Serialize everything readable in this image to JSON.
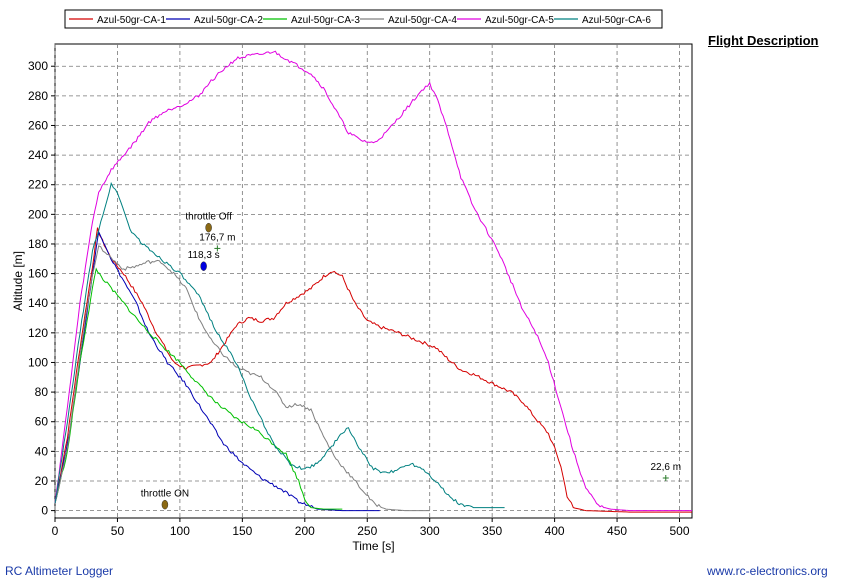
{
  "side_title": "Flight Description",
  "footer": {
    "left": "RC Altimeter Logger",
    "right": "www.rc-electronics.org"
  },
  "chart_data": {
    "type": "line",
    "xlabel": "Time [s]",
    "ylabel": "Altitude [m]",
    "xlim": [
      0,
      510
    ],
    "ylim": [
      -5,
      315
    ],
    "x_ticks": [
      0,
      50,
      100,
      150,
      200,
      250,
      300,
      350,
      400,
      450,
      500
    ],
    "y_ticks": [
      0,
      20,
      40,
      60,
      80,
      100,
      120,
      140,
      160,
      180,
      200,
      220,
      240,
      260,
      280,
      300
    ],
    "grid": true,
    "legend_position": "top",
    "series": [
      {
        "name": "Azul-50gr-CA-1",
        "color": "#d40000",
        "points": [
          [
            0,
            5
          ],
          [
            10,
            50
          ],
          [
            20,
            110
          ],
          [
            30,
            165
          ],
          [
            34,
            190
          ],
          [
            38,
            182
          ],
          [
            45,
            170
          ],
          [
            55,
            160
          ],
          [
            70,
            140
          ],
          [
            80,
            122
          ],
          [
            95,
            100
          ],
          [
            105,
            96
          ],
          [
            115,
            98
          ],
          [
            125,
            100
          ],
          [
            135,
            112
          ],
          [
            145,
            125
          ],
          [
            155,
            130
          ],
          [
            165,
            128
          ],
          [
            175,
            130
          ],
          [
            185,
            140
          ],
          [
            195,
            145
          ],
          [
            205,
            150
          ],
          [
            215,
            158
          ],
          [
            222,
            162
          ],
          [
            230,
            158
          ],
          [
            240,
            140
          ],
          [
            250,
            128
          ],
          [
            260,
            124
          ],
          [
            275,
            120
          ],
          [
            290,
            115
          ],
          [
            305,
            110
          ],
          [
            315,
            102
          ],
          [
            325,
            95
          ],
          [
            335,
            92
          ],
          [
            345,
            88
          ],
          [
            355,
            84
          ],
          [
            365,
            80
          ],
          [
            375,
            73
          ],
          [
            385,
            62
          ],
          [
            395,
            52
          ],
          [
            400,
            42
          ],
          [
            405,
            30
          ],
          [
            410,
            10
          ],
          [
            415,
            2
          ],
          [
            425,
            0
          ],
          [
            460,
            -1
          ],
          [
            510,
            -1
          ]
        ]
      },
      {
        "name": "Azul-50gr-CA-2",
        "color": "#0000b4",
        "points": [
          [
            0,
            5
          ],
          [
            10,
            45
          ],
          [
            20,
            100
          ],
          [
            30,
            160
          ],
          [
            35,
            188
          ],
          [
            40,
            180
          ],
          [
            45,
            170
          ],
          [
            55,
            155
          ],
          [
            65,
            140
          ],
          [
            75,
            120
          ],
          [
            90,
            100
          ],
          [
            105,
            85
          ],
          [
            120,
            65
          ],
          [
            135,
            45
          ],
          [
            150,
            32
          ],
          [
            165,
            22
          ],
          [
            180,
            15
          ],
          [
            195,
            6
          ],
          [
            210,
            1
          ],
          [
            230,
            0
          ],
          [
            260,
            0
          ]
        ]
      },
      {
        "name": "Azul-50gr-CA-3",
        "color": "#00c000",
        "points": [
          [
            0,
            5
          ],
          [
            10,
            40
          ],
          [
            20,
            100
          ],
          [
            30,
            150
          ],
          [
            33,
            163
          ],
          [
            37,
            158
          ],
          [
            45,
            150
          ],
          [
            55,
            140
          ],
          [
            70,
            125
          ],
          [
            85,
            112
          ],
          [
            100,
            100
          ],
          [
            115,
            85
          ],
          [
            130,
            72
          ],
          [
            145,
            62
          ],
          [
            160,
            55
          ],
          [
            175,
            45
          ],
          [
            185,
            38
          ],
          [
            195,
            20
          ],
          [
            200,
            8
          ],
          [
            205,
            2
          ],
          [
            215,
            1
          ],
          [
            230,
            1
          ]
        ]
      },
      {
        "name": "Azul-50gr-CA-4",
        "color": "#808080",
        "points": [
          [
            0,
            5
          ],
          [
            10,
            42
          ],
          [
            20,
            105
          ],
          [
            30,
            160
          ],
          [
            35,
            178
          ],
          [
            40,
            175
          ],
          [
            48,
            168
          ],
          [
            55,
            163
          ],
          [
            65,
            165
          ],
          [
            75,
            168
          ],
          [
            85,
            168
          ],
          [
            95,
            160
          ],
          [
            105,
            150
          ],
          [
            115,
            130
          ],
          [
            125,
            115
          ],
          [
            135,
            105
          ],
          [
            145,
            97
          ],
          [
            155,
            93
          ],
          [
            165,
            90
          ],
          [
            175,
            82
          ],
          [
            185,
            70
          ],
          [
            195,
            72
          ],
          [
            205,
            68
          ],
          [
            215,
            50
          ],
          [
            225,
            35
          ],
          [
            235,
            25
          ],
          [
            245,
            15
          ],
          [
            255,
            5
          ],
          [
            265,
            1
          ],
          [
            280,
            0
          ],
          [
            300,
            0
          ]
        ]
      },
      {
        "name": "Azul-50gr-CA-5",
        "color": "#e000e0",
        "points": [
          [
            0,
            5
          ],
          [
            10,
            70
          ],
          [
            20,
            140
          ],
          [
            30,
            195
          ],
          [
            35,
            215
          ],
          [
            45,
            230
          ],
          [
            55,
            240
          ],
          [
            65,
            250
          ],
          [
            75,
            262
          ],
          [
            85,
            268
          ],
          [
            95,
            272
          ],
          [
            105,
            275
          ],
          [
            115,
            280
          ],
          [
            125,
            290
          ],
          [
            135,
            298
          ],
          [
            145,
            305
          ],
          [
            155,
            307
          ],
          [
            165,
            308
          ],
          [
            175,
            310
          ],
          [
            185,
            305
          ],
          [
            195,
            300
          ],
          [
            205,
            295
          ],
          [
            215,
            285
          ],
          [
            225,
            270
          ],
          [
            235,
            255
          ],
          [
            245,
            250
          ],
          [
            255,
            248
          ],
          [
            265,
            255
          ],
          [
            275,
            265
          ],
          [
            285,
            275
          ],
          [
            295,
            285
          ],
          [
            300,
            288
          ],
          [
            305,
            280
          ],
          [
            315,
            255
          ],
          [
            325,
            225
          ],
          [
            335,
            205
          ],
          [
            345,
            190
          ],
          [
            355,
            175
          ],
          [
            365,
            155
          ],
          [
            375,
            135
          ],
          [
            385,
            120
          ],
          [
            395,
            100
          ],
          [
            405,
            70
          ],
          [
            415,
            40
          ],
          [
            425,
            15
          ],
          [
            435,
            3
          ],
          [
            445,
            1
          ],
          [
            460,
            0
          ],
          [
            490,
            0
          ],
          [
            510,
            0
          ]
        ]
      },
      {
        "name": "Azul-50gr-CA-6",
        "color": "#008080",
        "points": [
          [
            0,
            5
          ],
          [
            10,
            60
          ],
          [
            20,
            120
          ],
          [
            30,
            175
          ],
          [
            35,
            190
          ],
          [
            40,
            205
          ],
          [
            45,
            220
          ],
          [
            50,
            215
          ],
          [
            60,
            190
          ],
          [
            70,
            180
          ],
          [
            85,
            170
          ],
          [
            100,
            160
          ],
          [
            115,
            145
          ],
          [
            130,
            120
          ],
          [
            145,
            100
          ],
          [
            160,
            70
          ],
          [
            175,
            45
          ],
          [
            190,
            30
          ],
          [
            200,
            28
          ],
          [
            210,
            32
          ],
          [
            220,
            42
          ],
          [
            230,
            52
          ],
          [
            235,
            56
          ],
          [
            245,
            40
          ],
          [
            255,
            28
          ],
          [
            265,
            25
          ],
          [
            275,
            28
          ],
          [
            285,
            32
          ],
          [
            295,
            28
          ],
          [
            305,
            20
          ],
          [
            315,
            10
          ],
          [
            325,
            4
          ],
          [
            335,
            2
          ],
          [
            350,
            2
          ],
          [
            360,
            2
          ]
        ]
      }
    ],
    "annotations": [
      {
        "text": "throttle Off",
        "x": 123,
        "y": 191,
        "kind": "marker",
        "color": "#8b6914"
      },
      {
        "text": "176,7 m",
        "x": 130,
        "y": 177,
        "kind": "cross"
      },
      {
        "text": "118,3 s",
        "x": 119,
        "y": 165,
        "kind": "marker",
        "color": "#0000e0"
      },
      {
        "text": "throttle ON",
        "x": 88,
        "y": 4,
        "kind": "marker",
        "color": "#8b6914"
      },
      {
        "text": "22,6 m",
        "x": 489,
        "y": 22,
        "kind": "cross"
      }
    ]
  }
}
